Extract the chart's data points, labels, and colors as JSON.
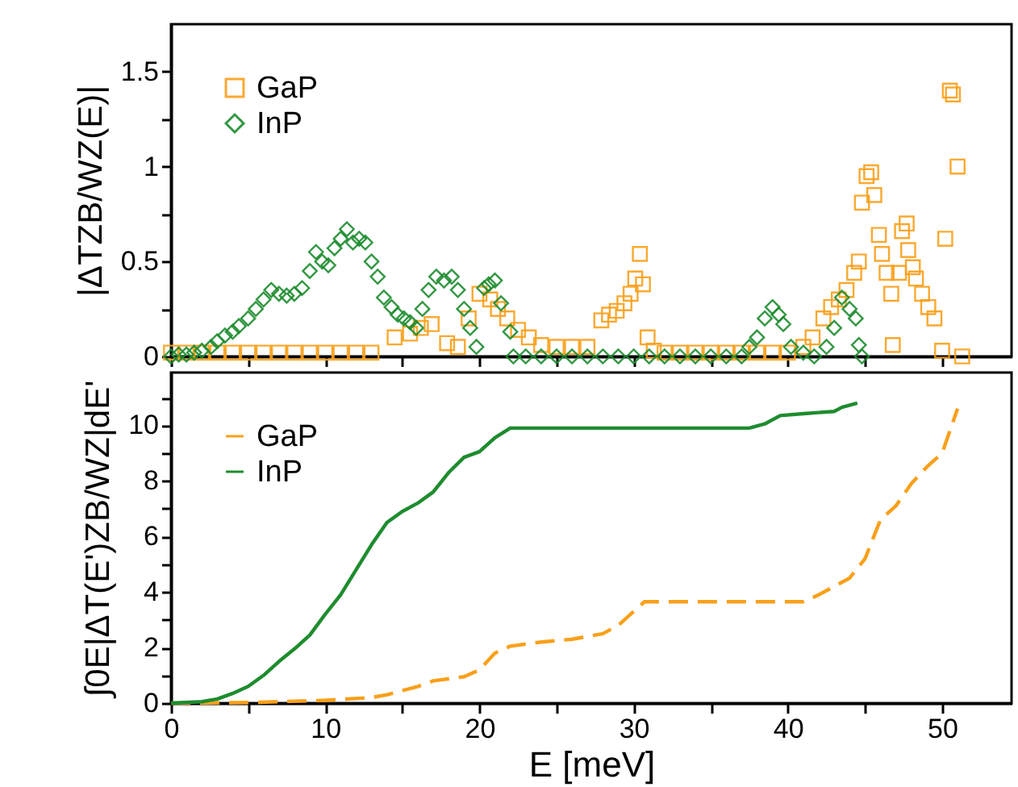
{
  "chart_data": [
    {
      "type": "scatter",
      "ylabel": "|ΔTZB/WZ(E)|",
      "legend": "top left",
      "tick_labels": "y",
      "xlim": [
        0,
        54.5
      ],
      "xticks": [
        0,
        {
          "value": 5,
          "label": null
        },
        10,
        {
          "value": 15,
          "label": null
        },
        20,
        {
          "value": 25,
          "label": null
        },
        30,
        {
          "value": 35,
          "label": null
        },
        40,
        {
          "value": 45,
          "label": null
        },
        50
      ],
      "ylim": [
        0,
        1.75
      ],
      "yticks": [
        0,
        {
          "value": 0.25,
          "label": null
        },
        0.5,
        {
          "value": 0.75,
          "label": null
        },
        1,
        {
          "value": 1.25,
          "label": null
        },
        1.5
      ],
      "series": [
        {
          "name": "GaP",
          "color": "#f9a01b",
          "marker": "square",
          "x": [
            0,
            1,
            2,
            3,
            4,
            5,
            6,
            7,
            8,
            9,
            10,
            11,
            12,
            13,
            14.5,
            15.5,
            16.2,
            16.9,
            17.9,
            18.6,
            19.3,
            20,
            20.7,
            21.2,
            21.8,
            22.5,
            23.2,
            24,
            25,
            26,
            27,
            27.9,
            28.4,
            28.9,
            29.4,
            29.8,
            30.1,
            30.4,
            30.6,
            30.9,
            31.3,
            32,
            33,
            34,
            35,
            36,
            37,
            38,
            39,
            40,
            41,
            41.6,
            42.3,
            42.8,
            43.3,
            43.8,
            44.3,
            44.6,
            44.8,
            45.1,
            45.4,
            45.6,
            45.9,
            46.1,
            46.4,
            46.7,
            46.8,
            47.2,
            47.4,
            47.7,
            47.8,
            48.1,
            48.3,
            48.7,
            49.1,
            49.5,
            50,
            50.2,
            50.5,
            50.7,
            51,
            51.3
          ],
          "values": [
            0.02,
            0.02,
            0.02,
            0.02,
            0.02,
            0.02,
            0.02,
            0.02,
            0.02,
            0.02,
            0.02,
            0.02,
            0.02,
            0.02,
            0.1,
            0.12,
            0.15,
            0.17,
            0.07,
            0.05,
            0.2,
            0.33,
            0.3,
            0.25,
            0.2,
            0.14,
            0.1,
            0.06,
            0.05,
            0.05,
            0.05,
            0.19,
            0.22,
            0.24,
            0.28,
            0.33,
            0.41,
            0.54,
            0.38,
            0.1,
            0.03,
            0.02,
            0.02,
            0.02,
            0.02,
            0.02,
            0.02,
            0.02,
            0.02,
            0.02,
            0.05,
            0.1,
            0.2,
            0.26,
            0.3,
            0.35,
            0.44,
            0.5,
            0.81,
            0.95,
            0.97,
            0.85,
            0.64,
            0.54,
            0.44,
            0.33,
            0.06,
            0.44,
            0.66,
            0.7,
            0.56,
            0.47,
            0.41,
            0.33,
            0.26,
            0.2,
            0.03,
            0.62,
            1.4,
            1.38,
            1.0,
            0
          ]
        },
        {
          "name": "InP",
          "color": "#1e8c2f",
          "marker": "diamond",
          "x": [
            0,
            0.5,
            1,
            1.5,
            2,
            2.6,
            3,
            3.5,
            4,
            4.4,
            5,
            5.5,
            6,
            6.5,
            7,
            7.5,
            8,
            8.5,
            9,
            9.4,
            9.8,
            10.2,
            10.6,
            11,
            11.4,
            11.8,
            12.2,
            12.6,
            13,
            13.4,
            13.8,
            14.3,
            14.7,
            15.1,
            15.5,
            15.9,
            16.3,
            16.7,
            17.2,
            17.7,
            18.2,
            18.6,
            19,
            19.4,
            19.8,
            20.3,
            20.6,
            21,
            21.4,
            22,
            22.2,
            23,
            24,
            25,
            26,
            27,
            28,
            29,
            30,
            31,
            32,
            33,
            34,
            35,
            36,
            37,
            37.5,
            38,
            38.5,
            39,
            39.4,
            39.7,
            40.2,
            41,
            41.7,
            42.5,
            43,
            43.5,
            44,
            44.4,
            44.6,
            44.8
          ],
          "values": [
            0,
            0.01,
            0.01,
            0.02,
            0.03,
            0.05,
            0.08,
            0.11,
            0.13,
            0.16,
            0.2,
            0.25,
            0.3,
            0.35,
            0.33,
            0.32,
            0.33,
            0.36,
            0.45,
            0.55,
            0.5,
            0.48,
            0.57,
            0.62,
            0.67,
            0.6,
            0.62,
            0.6,
            0.5,
            0.42,
            0.31,
            0.26,
            0.22,
            0.2,
            0.18,
            0.15,
            0.25,
            0.35,
            0.42,
            0.4,
            0.42,
            0.35,
            0.25,
            0.15,
            0.05,
            0.36,
            0.38,
            0.4,
            0.28,
            0.13,
            0,
            0,
            0,
            0,
            0,
            0,
            0,
            0,
            0,
            0,
            0,
            0,
            0,
            0,
            0,
            0,
            0.05,
            0.1,
            0.2,
            0.26,
            0.22,
            0.17,
            0.05,
            0.02,
            0,
            0.05,
            0.15,
            0.31,
            0.25,
            0.2,
            0.06,
            0
          ]
        }
      ]
    },
    {
      "type": "line",
      "xlabel": "E [meV]",
      "ylabel": "∫0E|ΔT(E')ZB/WZ|dE'",
      "legend": "top left",
      "xlim": [
        0,
        54.5
      ],
      "xticks": [
        0,
        {
          "value": 5,
          "label": null
        },
        10,
        {
          "value": 15,
          "label": null
        },
        20,
        {
          "value": 25,
          "label": null
        },
        30,
        {
          "value": 35,
          "label": null
        },
        40,
        {
          "value": 45,
          "label": null
        },
        50
      ],
      "ylim": [
        0,
        11.9
      ],
      "yticks": [
        0,
        {
          "value": 1,
          "label": null
        },
        2,
        {
          "value": 3,
          "label": null
        },
        4,
        {
          "value": 5,
          "label": null
        },
        6,
        {
          "value": 7,
          "label": null
        },
        8,
        {
          "value": 9,
          "label": null
        },
        10,
        {
          "value": 11,
          "label": null
        }
      ],
      "series": [
        {
          "name": "GaP",
          "color": "#f9a01b",
          "line_style": "dashed",
          "x": [
            0,
            5,
            10,
            13,
            14,
            15,
            16,
            17,
            19,
            20,
            21,
            22,
            24,
            26,
            28,
            29,
            30,
            30.7,
            35,
            41,
            42,
            43,
            44,
            45,
            46,
            47,
            48,
            49,
            50,
            51
          ],
          "values": [
            0,
            0.02,
            0.1,
            0.2,
            0.3,
            0.45,
            0.6,
            0.8,
            0.95,
            1.2,
            1.8,
            2.05,
            2.2,
            2.3,
            2.5,
            2.8,
            3.3,
            3.65,
            3.65,
            3.65,
            3.9,
            4.2,
            4.5,
            5.2,
            6.6,
            7.1,
            7.9,
            8.5,
            9.0,
            10.6
          ]
        },
        {
          "name": "InP",
          "color": "#1e8c2f",
          "line_style": "solid",
          "x": [
            0,
            2,
            3,
            4,
            5,
            6,
            7,
            8,
            9,
            10,
            11,
            12,
            13,
            14,
            15,
            16,
            17,
            18,
            19,
            20,
            21,
            22,
            30,
            37.5,
            38.5,
            39.5,
            41,
            43,
            43.5,
            44.5
          ],
          "values": [
            0,
            0.05,
            0.15,
            0.35,
            0.6,
            1.0,
            1.5,
            1.95,
            2.45,
            3.2,
            3.9,
            4.8,
            5.7,
            6.5,
            6.9,
            7.2,
            7.6,
            8.3,
            8.85,
            9.05,
            9.55,
            9.9,
            9.9,
            9.9,
            10.05,
            10.35,
            10.42,
            10.5,
            10.65,
            10.8
          ]
        }
      ]
    }
  ]
}
